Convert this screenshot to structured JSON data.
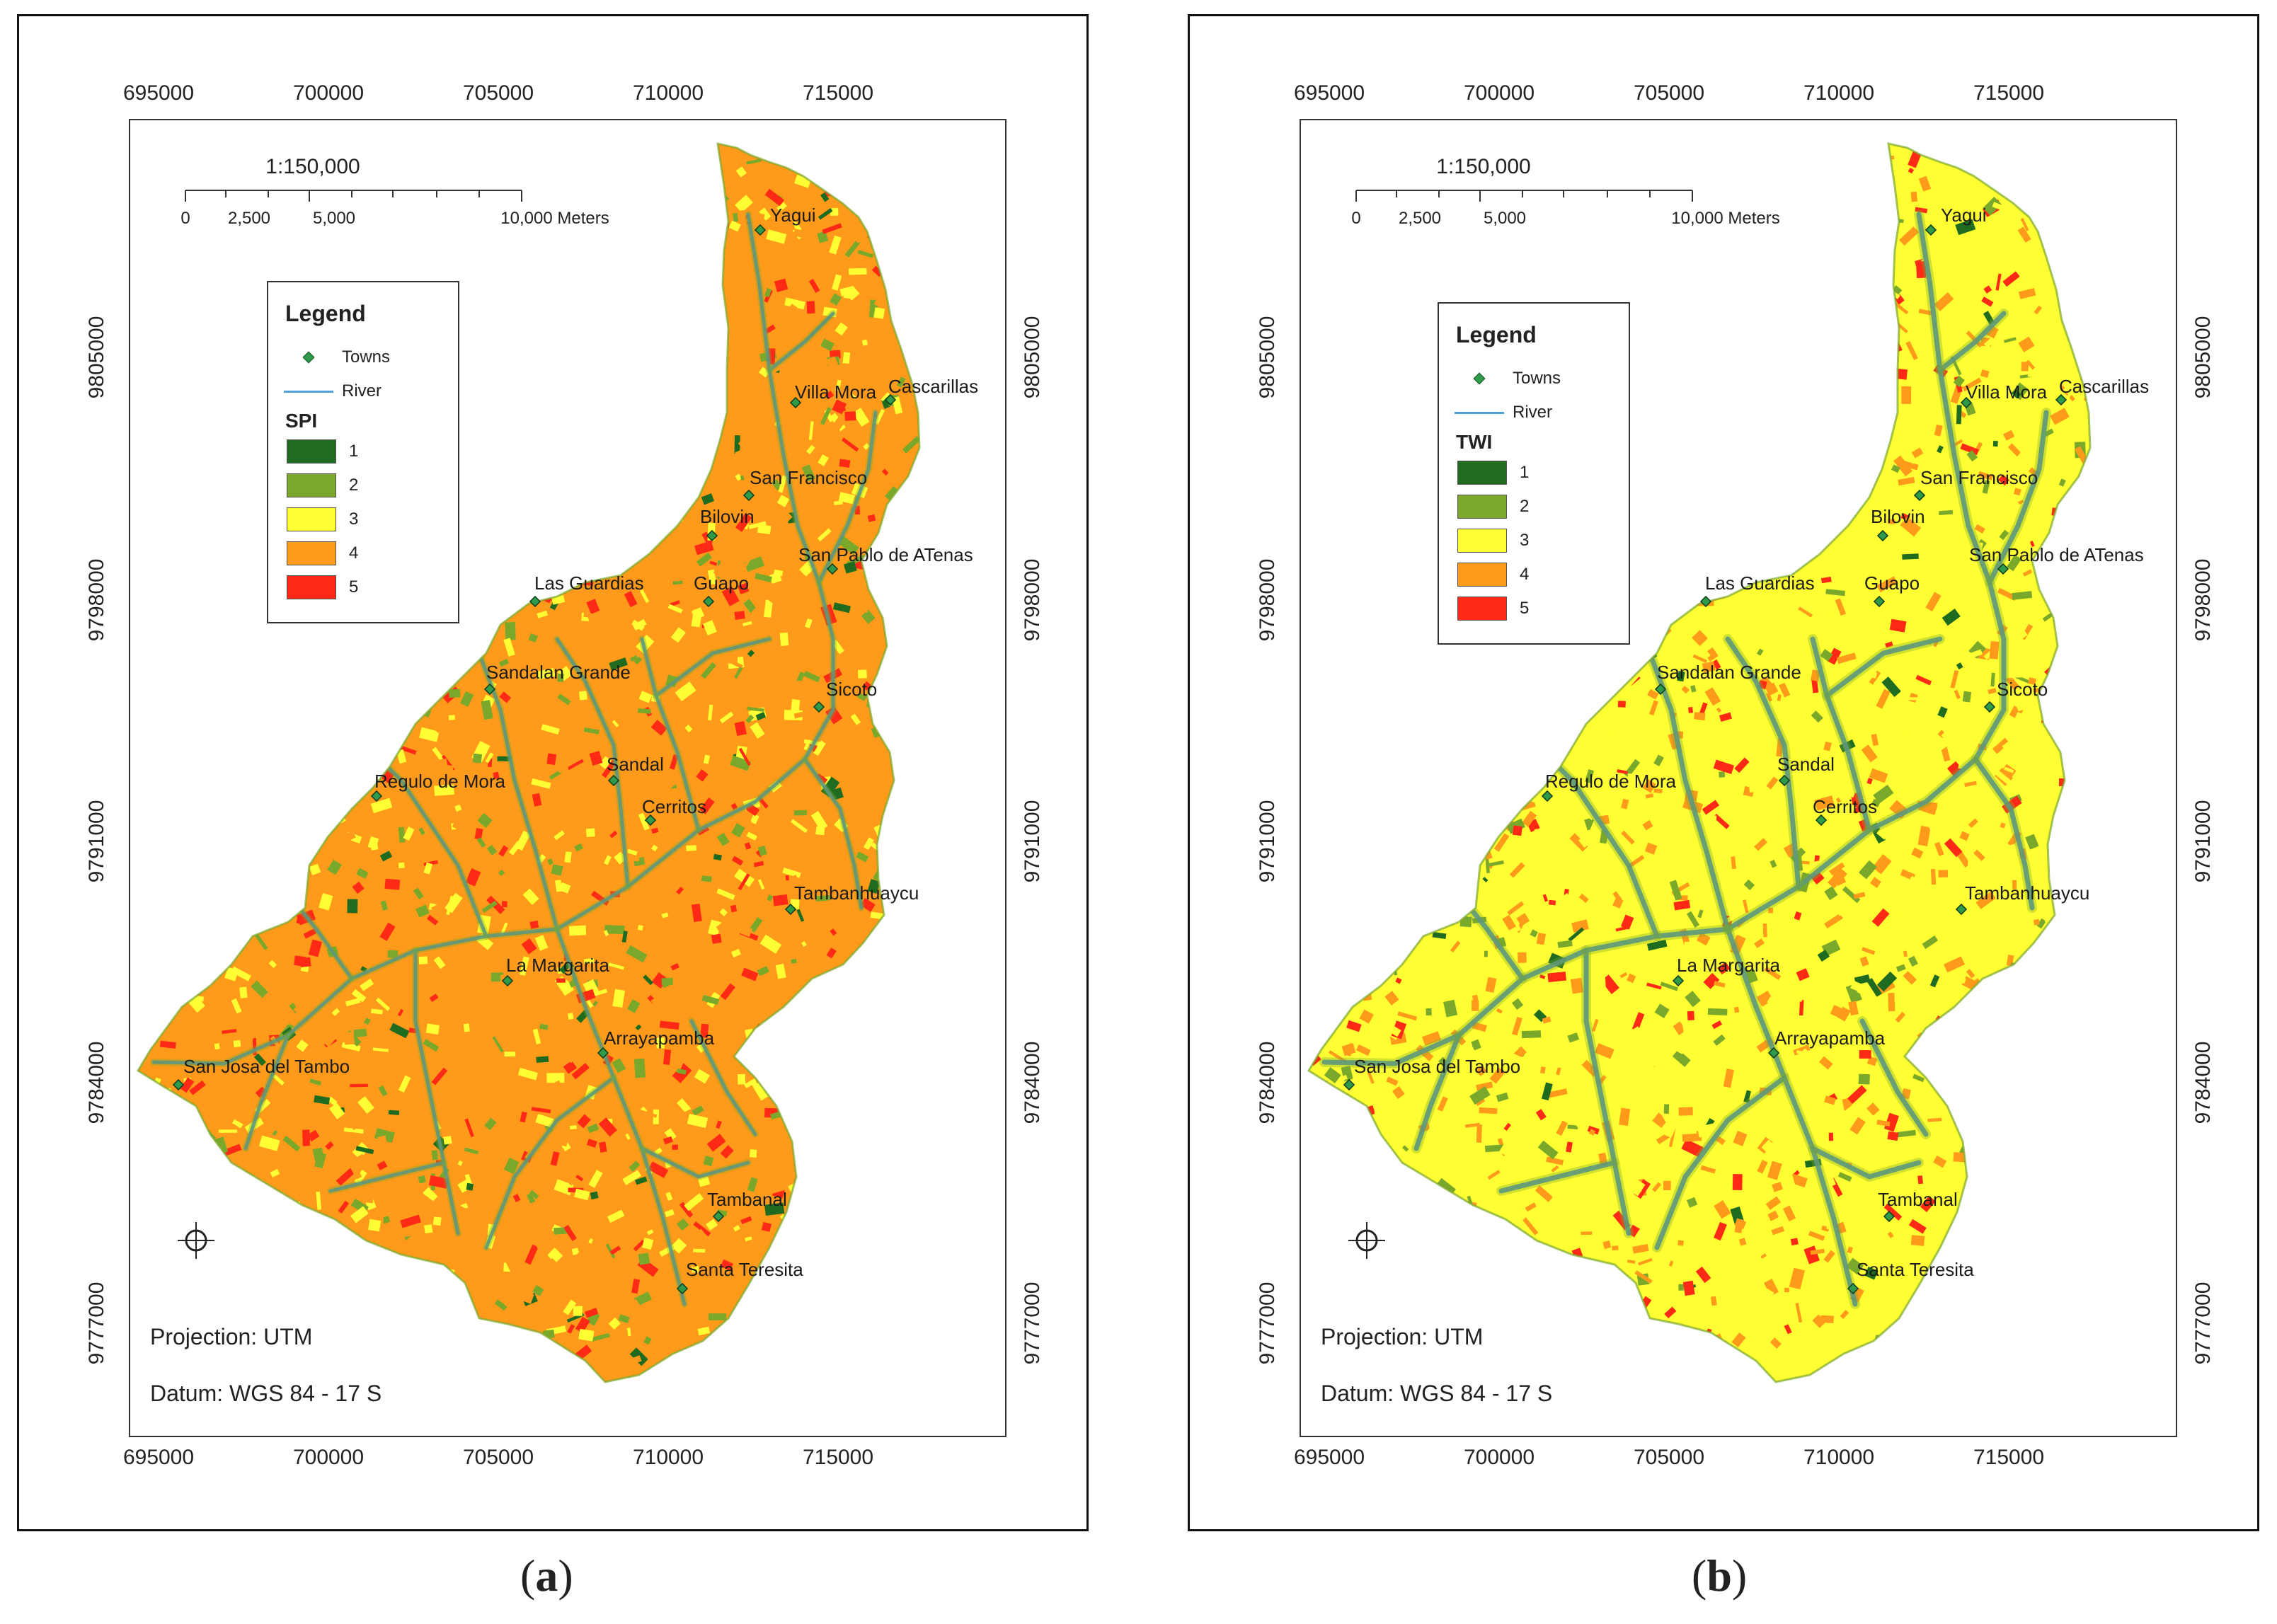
{
  "panels": [
    {
      "caption_letter": "a",
      "index_name": "SPI",
      "style": "spi",
      "scale": {
        "ratio": "1:150,000",
        "labels": [
          "0",
          "2,500",
          "5,000",
          "10,000 Meters"
        ]
      },
      "x_ticks": [
        "695000",
        "700000",
        "705000",
        "710000",
        "715000"
      ],
      "y_ticks": [
        "9805000",
        "9798000",
        "9791000",
        "9784000",
        "9777000"
      ],
      "legend": {
        "title": "Legend",
        "towns_label": "Towns",
        "river_label": "River",
        "classes": [
          {
            "label": "1",
            "color": "#1f6b1f"
          },
          {
            "label": "2",
            "color": "#7aa82a"
          },
          {
            "label": "3",
            "color": "#ffff33"
          },
          {
            "label": "4",
            "color": "#ff9a1a"
          },
          {
            "label": "5",
            "color": "#ff2a16"
          }
        ]
      },
      "projection": "Projection: UTM",
      "datum": "Datum: WGS 84 - 17 S"
    },
    {
      "caption_letter": "b",
      "index_name": "TWI",
      "style": "twi",
      "scale": {
        "ratio": "1:150,000",
        "labels": [
          "0",
          "2,500",
          "5,000",
          "10,000 Meters"
        ]
      },
      "x_ticks": [
        "695000",
        "700000",
        "705000",
        "710000",
        "715000"
      ],
      "y_ticks": [
        "9805000",
        "9798000",
        "9791000",
        "9784000",
        "9777000"
      ],
      "legend": {
        "title": "Legend",
        "towns_label": "Towns",
        "river_label": "River",
        "classes": [
          {
            "label": "1",
            "color": "#1f6b1f"
          },
          {
            "label": "2",
            "color": "#7aa82a"
          },
          {
            "label": "3",
            "color": "#ffff33"
          },
          {
            "label": "4",
            "color": "#ff9a1a"
          },
          {
            "label": "5",
            "color": "#ff2a16"
          }
        ]
      },
      "projection": "Projection: UTM",
      "datum": "Datum: WGS 84 - 17 S"
    }
  ],
  "towns": [
    {
      "name": "Yagui"
    },
    {
      "name": "Villa Mora"
    },
    {
      "name": "Cascarillas"
    },
    {
      "name": "San Francisco"
    },
    {
      "name": "Bilovin"
    },
    {
      "name": "San Pablo de ATenas"
    },
    {
      "name": "Las Guardias"
    },
    {
      "name": "Guapo"
    },
    {
      "name": "Sandalan Grande"
    },
    {
      "name": "Sicoto"
    },
    {
      "name": "Sandal"
    },
    {
      "name": "Regulo de Mora"
    },
    {
      "name": "Cerritos"
    },
    {
      "name": "Tambanhuaycu"
    },
    {
      "name": "La Margarita"
    },
    {
      "name": "Arrayapamba"
    },
    {
      "name": "San Josa del Tambo"
    },
    {
      "name": "Tambanal"
    },
    {
      "name": "Santa Teresita"
    }
  ]
}
